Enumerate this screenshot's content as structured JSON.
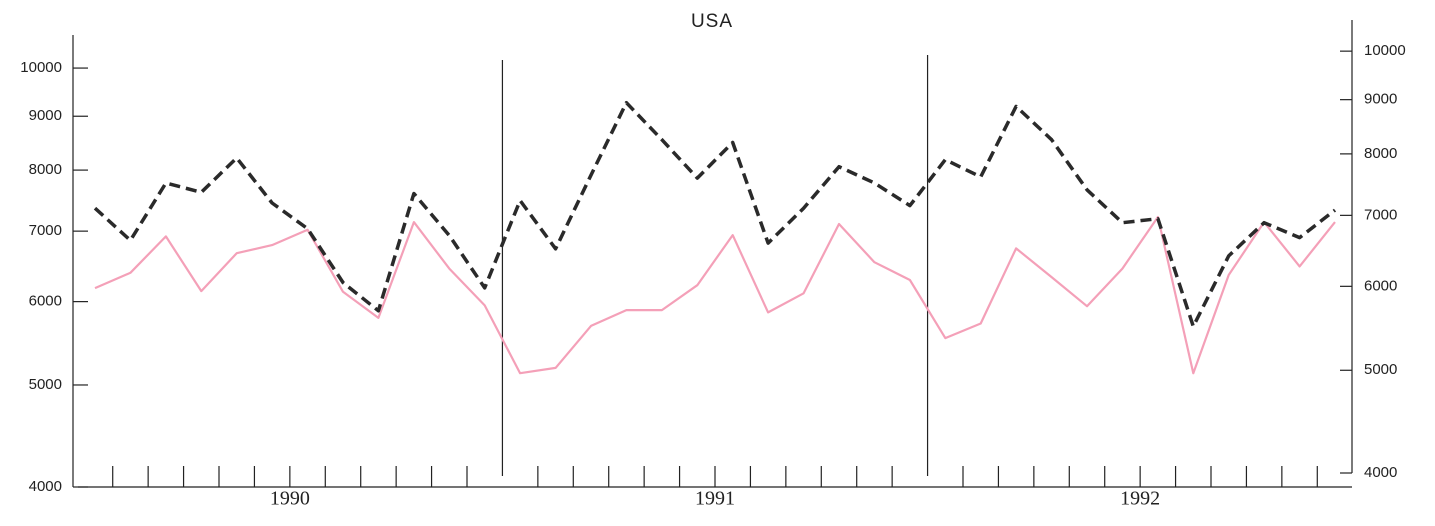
{
  "chart_data": {
    "type": "line",
    "title": "USA",
    "categories": [
      null,
      null,
      null,
      null,
      null,
      null,
      "1990",
      null,
      null,
      null,
      null,
      null,
      null,
      null,
      null,
      null,
      null,
      null,
      "1991",
      null,
      null,
      null,
      null,
      null,
      null,
      null,
      null,
      null,
      null,
      null,
      "1992",
      null,
      null,
      null,
      null,
      null
    ],
    "log_scale": true,
    "ylim": [
      4000,
      10750
    ],
    "yticks": [
      4000,
      5000,
      6000,
      7000,
      8000,
      9000,
      10000
    ],
    "y2lim": [
      4000,
      10700
    ],
    "y2ticks": [
      4000,
      5000,
      6000,
      7000,
      8000,
      9000,
      10000
    ],
    "series": [
      {
        "color": "#f4a0b8",
        "dash": false,
        "axis": "y",
        "values": [
          6180,
          6390,
          6920,
          6140,
          6670,
          6790,
          7020,
          6130,
          5790,
          7140,
          6450,
          5950,
          5130,
          5190,
          5690,
          5890,
          5890,
          6220,
          6940,
          5860,
          6110,
          7110,
          6540,
          6290,
          5540,
          5720,
          6740,
          6330,
          5940,
          6450,
          7220,
          5130,
          6360,
          7140,
          6480,
          7140
        ]
      },
      {
        "color": "#2a2a2a",
        "dash": true,
        "axis": "y2",
        "values": [
          7110,
          6630,
          7510,
          7360,
          7930,
          7190,
          6800,
          6050,
          5690,
          7340,
          6700,
          5980,
          7230,
          6510,
          7640,
          8940,
          8250,
          7590,
          8200,
          6590,
          7110,
          7780,
          7510,
          7150,
          7900,
          7610,
          8870,
          8250,
          7400,
          6890,
          6950,
          5500,
          6410,
          6890,
          6670,
          7080
        ]
      }
    ]
  }
}
